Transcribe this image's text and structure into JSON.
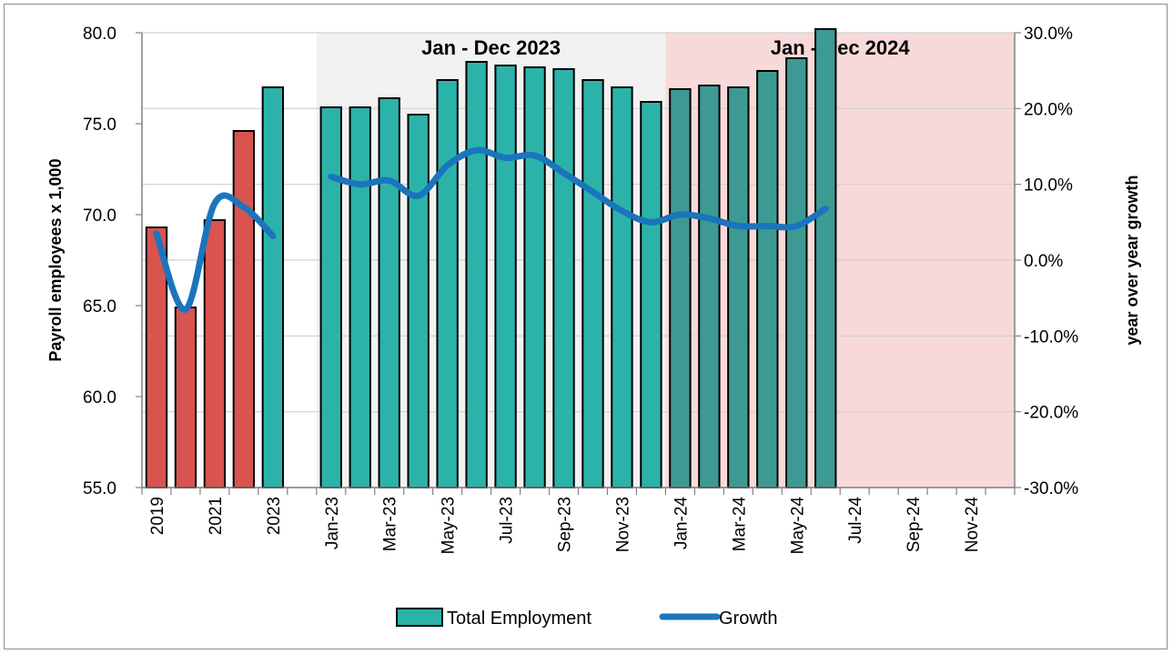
{
  "chart_data": {
    "type": "bar",
    "categories": [
      "2019",
      "2020",
      "2021",
      "2022",
      "2023",
      "",
      "Jan-23",
      "Feb-23",
      "Mar-23",
      "Apr-23",
      "May-23",
      "Jun-23",
      "Jul-23",
      "Aug-23",
      "Sep-23",
      "Oct-23",
      "Nov-23",
      "Dec-23",
      "Jan-24",
      "Feb-24",
      "Mar-24",
      "Apr-24",
      "May-24",
      "Jun-24",
      "Jul-24",
      "Aug-24",
      "Sep-24",
      "Oct-24",
      "Nov-24",
      "Dec-24"
    ],
    "x_tick_labels": [
      "2019",
      "",
      "2021",
      "",
      "2023",
      "",
      "Jan-23",
      "",
      "Mar-23",
      "",
      "May-23",
      "",
      "Jul-23",
      "",
      "Sep-23",
      "",
      "Nov-23",
      "",
      "Jan-24",
      "",
      "Mar-24",
      "",
      "May-24",
      "",
      "Jul-24",
      "",
      "Sep-24",
      "",
      "Nov-24",
      ""
    ],
    "series": [
      {
        "name": "Total Employment",
        "type": "bar",
        "axis": "left",
        "values": [
          69.3,
          64.9,
          69.7,
          74.6,
          77.0,
          null,
          75.9,
          75.9,
          76.4,
          75.5,
          77.4,
          78.4,
          78.2,
          78.1,
          78.0,
          77.4,
          77.0,
          76.2,
          76.9,
          77.1,
          77.0,
          77.9,
          78.6,
          80.2,
          null,
          null,
          null,
          null,
          null,
          null
        ]
      },
      {
        "name": "Growth",
        "type": "line",
        "axis": "right",
        "values": [
          3.5,
          -6.5,
          7.5,
          7.0,
          3.2,
          null,
          11.0,
          10.0,
          10.5,
          8.5,
          12.5,
          14.5,
          13.5,
          13.8,
          11.5,
          9.0,
          6.5,
          5.0,
          6.0,
          5.5,
          4.5,
          4.5,
          4.5,
          6.8,
          null,
          null,
          null,
          null,
          null,
          null
        ]
      }
    ],
    "bar_colors": {
      "annual_past": "#d9534f",
      "annual_current": "#2bb3aa",
      "monthly": "#2bb3aa",
      "monthly_2024": "#3d9a93"
    },
    "line_color": "#1b75bc",
    "y_left": {
      "label": "Payroll employees x 1,000",
      "min": 55,
      "max": 80,
      "ticks": [
        "55.0",
        "60.0",
        "65.0",
        "70.0",
        "75.0",
        "80.0"
      ]
    },
    "y_right": {
      "label": "year over year growth",
      "min": -30,
      "max": 30,
      "ticks": [
        "-30.0%",
        "-20.0%",
        "-10.0%",
        "0.0%",
        "10.0%",
        "20.0%",
        "30.0%"
      ]
    },
    "bands": [
      {
        "label": "Jan - Dec 2023",
        "from": "Jan-23",
        "to": "Dec-23",
        "color": "#f2f2f2"
      },
      {
        "label": "Jan - Dec 2024",
        "from": "Jan-24",
        "to": "Dec-24",
        "color": "#f8d9da"
      }
    ],
    "grid": true,
    "legend_position": "bottom"
  }
}
